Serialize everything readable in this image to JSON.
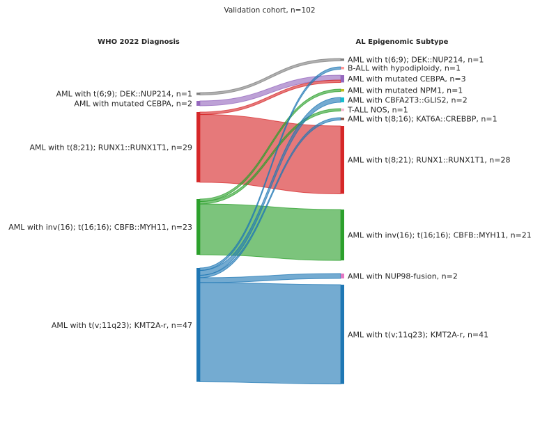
{
  "title": "Validation cohort, n=102",
  "left_header": "WHO 2022 Diagnosis",
  "right_header": "AL Epigenomic Subtype",
  "left_nodes": [
    {
      "id": "L_dek",
      "label": "AML with t(6;9); DEK::NUP214, n=1",
      "n": 1,
      "color": "#7f7f7f"
    },
    {
      "id": "L_cebpa",
      "label": "AML with mutated CEBPA, n=2",
      "n": 2,
      "color": "#9467bd"
    },
    {
      "id": "L_runx",
      "label": "AML with t(8;21); RUNX1::RUNX1T1, n=29",
      "n": 29,
      "color": "#d62728"
    },
    {
      "id": "L_cbfb",
      "label": "AML with inv(16); t(16;16); CBFB::MYH11, n=23",
      "n": 23,
      "color": "#2ca02c"
    },
    {
      "id": "L_kmt2a",
      "label": "AML with t(v;11q23); KMT2A-r, n=47",
      "n": 47,
      "color": "#1f77b4"
    }
  ],
  "right_nodes": [
    {
      "id": "R_dek",
      "label": "AML with t(6;9); DEK::NUP214, n=1",
      "n": 1,
      "color": "#7f7f7f"
    },
    {
      "id": "R_ball",
      "label": "B-ALL with hypodiploidy, n=1",
      "n": 1,
      "color": "#ff9896"
    },
    {
      "id": "R_cebpa",
      "label": "AML with mutated CEBPA, n=3",
      "n": 3,
      "color": "#9467bd"
    },
    {
      "id": "R_npm1",
      "label": "AML with mutated NPM1, n=1",
      "n": 1,
      "color": "#bcbd22"
    },
    {
      "id": "R_glis",
      "label": "AML with CBFA2T3::GLIS2, n=2",
      "n": 2,
      "color": "#17becf"
    },
    {
      "id": "R_tall",
      "label": "T-ALL NOS, n=1",
      "n": 1,
      "color": "#f7b6d2"
    },
    {
      "id": "R_kat6a",
      "label": "AML with t(8;16); KAT6A::CREBBP, n=1",
      "n": 1,
      "color": "#8c564b"
    },
    {
      "id": "R_runx",
      "label": "AML with t(8;21); RUNX1::RUNX1T1, n=28",
      "n": 28,
      "color": "#d62728"
    },
    {
      "id": "R_cbfb",
      "label": "AML with inv(16); t(16;16); CBFB::MYH11, n=21",
      "n": 21,
      "color": "#2ca02c"
    },
    {
      "id": "R_nup98",
      "label": "AML with NUP98-fusion, n=2",
      "n": 2,
      "color": "#e377c2"
    },
    {
      "id": "R_kmt2a",
      "label": "AML with t(v;11q23); KMT2A-r, n=41",
      "n": 41,
      "color": "#1f77b4"
    }
  ],
  "flows": [
    {
      "source": "L_dek",
      "target": "R_dek",
      "n": 1
    },
    {
      "source": "L_cebpa",
      "target": "R_cebpa",
      "n": 2
    },
    {
      "source": "L_runx",
      "target": "R_cebpa",
      "n": 1
    },
    {
      "source": "L_runx",
      "target": "R_runx",
      "n": 28
    },
    {
      "source": "L_cbfb",
      "target": "R_npm1",
      "n": 1
    },
    {
      "source": "L_cbfb",
      "target": "R_tall",
      "n": 1
    },
    {
      "source": "L_cbfb",
      "target": "R_cbfb",
      "n": 21
    },
    {
      "source": "L_kmt2a",
      "target": "R_ball",
      "n": 1
    },
    {
      "source": "L_kmt2a",
      "target": "R_glis",
      "n": 2
    },
    {
      "source": "L_kmt2a",
      "target": "R_kat6a",
      "n": 1
    },
    {
      "source": "L_kmt2a",
      "target": "R_nup98",
      "n": 2
    },
    {
      "source": "L_kmt2a",
      "target": "R_kmt2a",
      "n": 41
    }
  ]
}
